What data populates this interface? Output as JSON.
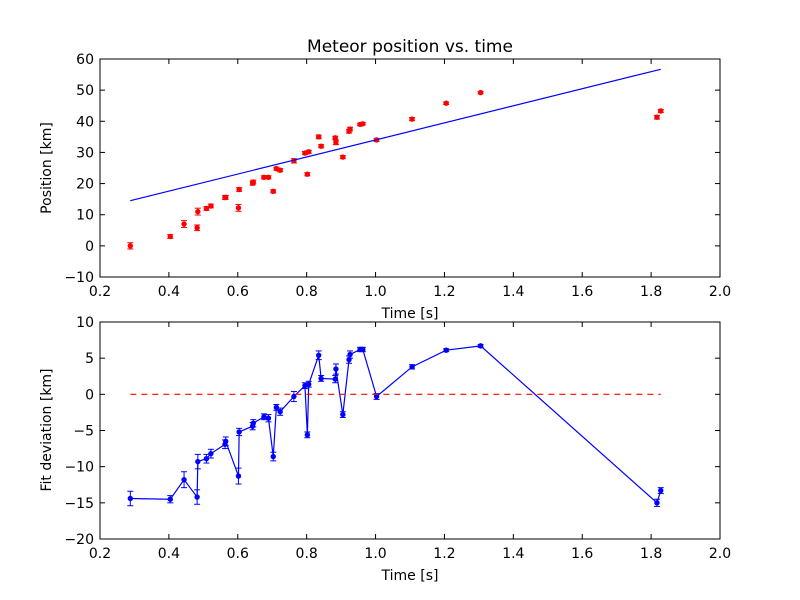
{
  "chart_data": [
    {
      "type": "scatter",
      "title": "Meteor position vs. time",
      "xlabel": "Time [s]",
      "ylabel": "Position [km]",
      "xlim": [
        0.2,
        2.0
      ],
      "ylim": [
        -10,
        60
      ],
      "xticks": [
        "0.2",
        "0.4",
        "0.6",
        "0.8",
        "1.0",
        "1.2",
        "1.4",
        "1.6",
        "1.8",
        "2.0"
      ],
      "yticks": [
        "−10",
        "0",
        "10",
        "20",
        "30",
        "40",
        "50",
        "60"
      ],
      "grid": false,
      "series": [
        {
          "style": "errorbar-points",
          "color": "#ff0000",
          "points": [
            {
              "x": 0.288,
              "y": 0.0,
              "err": 1.0
            },
            {
              "x": 0.404,
              "y": 3.0,
              "err": 0.6
            },
            {
              "x": 0.444,
              "y": 7.0,
              "err": 1.1
            },
            {
              "x": 0.482,
              "y": 5.8,
              "err": 0.9
            },
            {
              "x": 0.484,
              "y": 11.0,
              "err": 1.1
            },
            {
              "x": 0.509,
              "y": 12.0,
              "err": 0.6
            },
            {
              "x": 0.522,
              "y": 12.8,
              "err": 0.6
            },
            {
              "x": 0.563,
              "y": 15.5,
              "err": 0.6
            },
            {
              "x": 0.565,
              "y": 15.6,
              "err": 0.6
            },
            {
              "x": 0.602,
              "y": 12.2,
              "err": 1.1
            },
            {
              "x": 0.604,
              "y": 18.1,
              "err": 0.6
            },
            {
              "x": 0.643,
              "y": 20.1,
              "err": 0.6
            },
            {
              "x": 0.645,
              "y": 20.5,
              "err": 0.6
            },
            {
              "x": 0.676,
              "y": 22.0,
              "err": 0.5
            },
            {
              "x": 0.689,
              "y": 22.0,
              "err": 0.5
            },
            {
              "x": 0.703,
              "y": 17.5,
              "err": 0.5
            },
            {
              "x": 0.712,
              "y": 24.8,
              "err": 0.5
            },
            {
              "x": 0.723,
              "y": 24.3,
              "err": 0.5
            },
            {
              "x": 0.763,
              "y": 27.3,
              "err": 0.7
            },
            {
              "x": 0.795,
              "y": 29.8,
              "err": 0.5
            },
            {
              "x": 0.802,
              "y": 23.0,
              "err": 0.5
            },
            {
              "x": 0.806,
              "y": 30.2,
              "err": 0.5
            },
            {
              "x": 0.835,
              "y": 35.0,
              "err": 0.6
            },
            {
              "x": 0.842,
              "y": 32.0,
              "err": 0.5
            },
            {
              "x": 0.883,
              "y": 34.7,
              "err": 0.5
            },
            {
              "x": 0.885,
              "y": 33.2,
              "err": 0.7
            },
            {
              "x": 0.905,
              "y": 28.5,
              "err": 0.5
            },
            {
              "x": 0.923,
              "y": 36.8,
              "err": 0.6
            },
            {
              "x": 0.926,
              "y": 37.5,
              "err": 0.6
            },
            {
              "x": 0.955,
              "y": 39.0,
              "err": 0.4
            },
            {
              "x": 0.963,
              "y": 39.2,
              "err": 0.4
            },
            {
              "x": 1.003,
              "y": 34.0,
              "err": 0.5
            },
            {
              "x": 1.106,
              "y": 40.7,
              "err": 0.5
            },
            {
              "x": 1.205,
              "y": 45.8,
              "err": 0.4
            },
            {
              "x": 1.305,
              "y": 49.2,
              "err": 0.4
            },
            {
              "x": 1.817,
              "y": 41.3,
              "err": 0.6
            },
            {
              "x": 1.828,
              "y": 43.3,
              "err": 0.5
            }
          ]
        },
        {
          "style": "line",
          "color": "#0000ff",
          "points": [
            {
              "x": 0.288,
              "y": 14.5
            },
            {
              "x": 1.828,
              "y": 56.7
            }
          ]
        }
      ]
    },
    {
      "type": "line",
      "xlabel": "Time [s]",
      "ylabel": "Fit deviation [km]",
      "xlim": [
        0.2,
        2.0
      ],
      "ylim": [
        -20,
        10
      ],
      "xticks": [
        "0.2",
        "0.4",
        "0.6",
        "0.8",
        "1.0",
        "1.2",
        "1.4",
        "1.6",
        "1.8",
        "2.0"
      ],
      "yticks": [
        "−20",
        "−15",
        "−10",
        "−5",
        "0",
        "5",
        "10"
      ],
      "grid": false,
      "series": [
        {
          "style": "errorbar-line",
          "color": "#0000ff",
          "points": [
            {
              "x": 0.288,
              "y": -14.4,
              "err": 1.0
            },
            {
              "x": 0.404,
              "y": -14.5,
              "err": 0.5
            },
            {
              "x": 0.444,
              "y": -11.8,
              "err": 1.1
            },
            {
              "x": 0.482,
              "y": -14.2,
              "err": 1.0
            },
            {
              "x": 0.484,
              "y": -9.3,
              "err": 1.0
            },
            {
              "x": 0.509,
              "y": -8.9,
              "err": 0.6
            },
            {
              "x": 0.522,
              "y": -8.2,
              "err": 0.6
            },
            {
              "x": 0.563,
              "y": -6.9,
              "err": 0.6
            },
            {
              "x": 0.565,
              "y": -6.5,
              "err": 0.6
            },
            {
              "x": 0.602,
              "y": -11.3,
              "err": 1.1
            },
            {
              "x": 0.604,
              "y": -5.2,
              "err": 0.5
            },
            {
              "x": 0.643,
              "y": -4.4,
              "err": 0.5
            },
            {
              "x": 0.645,
              "y": -4.0,
              "err": 0.5
            },
            {
              "x": 0.676,
              "y": -3.1,
              "err": 0.4
            },
            {
              "x": 0.689,
              "y": -3.3,
              "err": 0.5
            },
            {
              "x": 0.703,
              "y": -8.6,
              "err": 0.6
            },
            {
              "x": 0.712,
              "y": -1.8,
              "err": 0.4
            },
            {
              "x": 0.723,
              "y": -2.4,
              "err": 0.5
            },
            {
              "x": 0.763,
              "y": -0.3,
              "err": 0.7
            },
            {
              "x": 0.795,
              "y": 1.2,
              "err": 0.4
            },
            {
              "x": 0.802,
              "y": -5.6,
              "err": 0.4
            },
            {
              "x": 0.806,
              "y": 1.4,
              "err": 0.4
            },
            {
              "x": 0.835,
              "y": 5.4,
              "err": 0.6
            },
            {
              "x": 0.842,
              "y": 2.2,
              "err": 0.4
            },
            {
              "x": 0.883,
              "y": 2.1,
              "err": 0.5
            },
            {
              "x": 0.885,
              "y": 3.5,
              "err": 0.7
            },
            {
              "x": 0.905,
              "y": -2.8,
              "err": 0.4
            },
            {
              "x": 0.923,
              "y": 4.8,
              "err": 0.5
            },
            {
              "x": 0.926,
              "y": 5.5,
              "err": 0.5
            },
            {
              "x": 0.955,
              "y": 6.2,
              "err": 0.3
            },
            {
              "x": 0.963,
              "y": 6.2,
              "err": 0.3
            },
            {
              "x": 1.003,
              "y": -0.3,
              "err": 0.4
            },
            {
              "x": 1.106,
              "y": 3.8,
              "err": 0.3
            },
            {
              "x": 1.205,
              "y": 6.1,
              "err": 0.2
            },
            {
              "x": 1.305,
              "y": 6.7,
              "err": 0.2
            },
            {
              "x": 1.817,
              "y": -15.0,
              "err": 0.5
            },
            {
              "x": 1.828,
              "y": -13.3,
              "err": 0.4
            }
          ]
        },
        {
          "style": "dashed",
          "color": "#ff0000",
          "points": [
            {
              "x": 0.288,
              "y": 0
            },
            {
              "x": 1.828,
              "y": 0
            }
          ]
        }
      ]
    }
  ]
}
